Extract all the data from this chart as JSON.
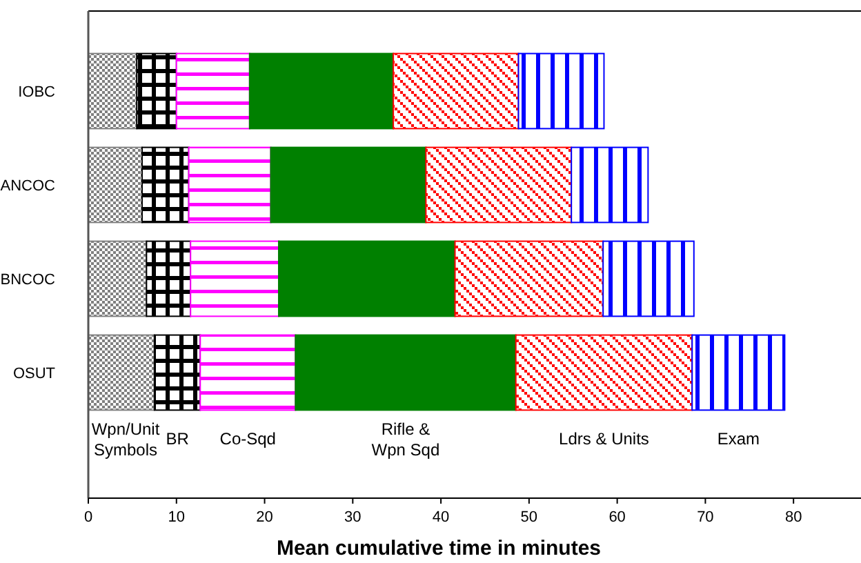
{
  "chart_data": {
    "type": "bar",
    "orientation": "horizontal",
    "stacked": true,
    "xlabel": "Mean cumulative time in minutes",
    "categories": [
      "IOBC",
      "ANCOC",
      "BNCOC",
      "OSUT"
    ],
    "xlim": [
      0,
      87.5
    ],
    "xticks": [
      0,
      10,
      20,
      30,
      40,
      50,
      60,
      70,
      80
    ],
    "grid": false,
    "series": [
      {
        "name": "Wpn/Unit Symbols",
        "color": "#808080",
        "values": [
          5.5,
          6.1,
          6.6,
          7.5
        ]
      },
      {
        "name": "BR",
        "color": "#000000",
        "values": [
          4.5,
          5.3,
          5.0,
          5.2
        ]
      },
      {
        "name": "Co-Sqd",
        "color": "#ff00ff",
        "values": [
          8.3,
          9.3,
          10.0,
          10.8
        ]
      },
      {
        "name": "Rifle & Wpn Sqd",
        "color": "#008000",
        "values": [
          16.3,
          17.6,
          20.0,
          25.0
        ]
      },
      {
        "name": "Ldrs & Units",
        "color": "#ff0000",
        "values": [
          14.2,
          16.5,
          16.8,
          20.0
        ]
      },
      {
        "name": "Exam",
        "color": "#0000ff",
        "values": [
          9.7,
          8.7,
          10.3,
          10.5
        ]
      }
    ]
  }
}
